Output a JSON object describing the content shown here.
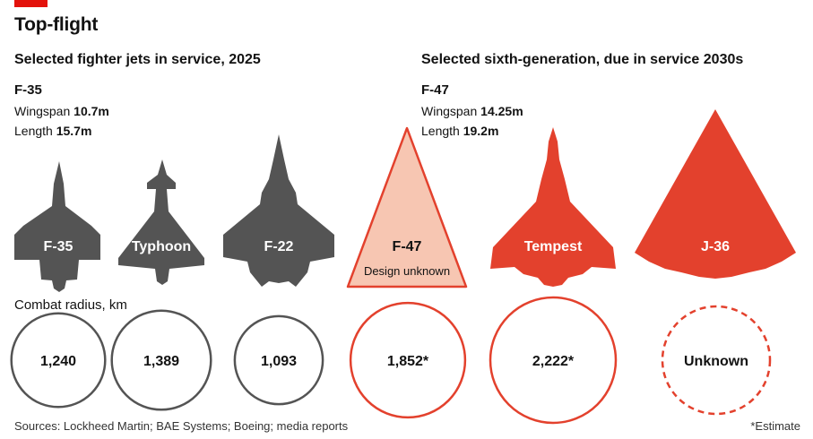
{
  "title": "Top-flight",
  "colors": {
    "grey": "#545454",
    "red": "#e3412d",
    "pink_fill": "#f7c6b2",
    "pink_stroke": "#e3412d",
    "circle_grey": "#545454",
    "circle_red": "#e3412d"
  },
  "left_panel": {
    "subtitle": "Selected fighter jets in service, 2025",
    "featured_jet": "F-35",
    "wingspan_label": "Wingspan",
    "wingspan_value": "10.7m",
    "length_label": "Length",
    "length_value": "15.7m"
  },
  "right_panel": {
    "subtitle": "Selected sixth-generation, due in service 2030s",
    "featured_jet": "F-47",
    "wingspan_label": "Wingspan",
    "wingspan_value": "14.25m",
    "length_label": "Length",
    "length_value": "19.2m"
  },
  "combat_radius_label": "Combat radius, km",
  "chart_data": {
    "type": "proportional-area",
    "title": "Top-flight",
    "measure": "Combat radius, km",
    "jets": [
      {
        "name": "F-35",
        "group": "in service 2025",
        "radius_km": 1240,
        "radius_label": "1,240",
        "estimate": false,
        "known": true
      },
      {
        "name": "Typhoon",
        "group": "in service 2025",
        "radius_km": 1389,
        "radius_label": "1,389",
        "estimate": false,
        "known": true
      },
      {
        "name": "F-22",
        "group": "in service 2025",
        "radius_km": 1093,
        "radius_label": "1,093",
        "estimate": false,
        "known": true
      },
      {
        "name": "F-47",
        "group": "sixth-generation",
        "radius_km": 1852,
        "radius_label": "1,852*",
        "estimate": true,
        "known": true,
        "sublabel": "Design unknown"
      },
      {
        "name": "Tempest",
        "group": "sixth-generation",
        "radius_km": 2222,
        "radius_label": "2,222*",
        "estimate": true,
        "known": true
      },
      {
        "name": "J-36",
        "group": "sixth-generation",
        "radius_km": null,
        "radius_label": "Unknown",
        "estimate": false,
        "known": false
      }
    ]
  },
  "source": "Sources: Lockheed Martin; BAE Systems; Boeing; media reports",
  "footnote": "*Estimate"
}
